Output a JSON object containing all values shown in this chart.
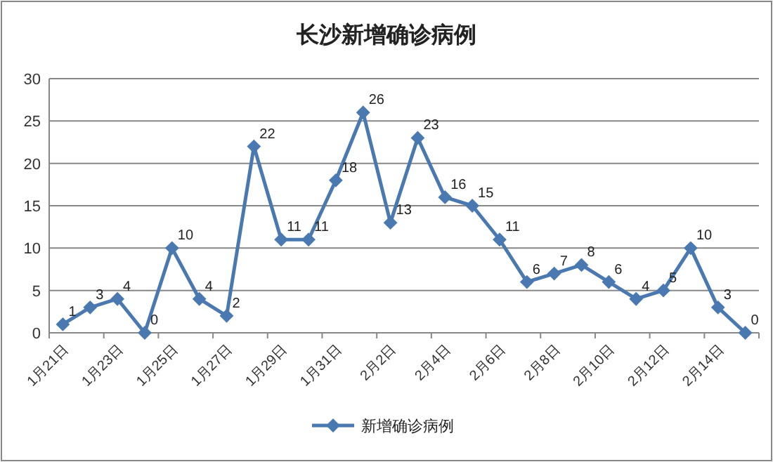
{
  "chart_data": {
    "type": "line",
    "title": "长沙新增确诊病例",
    "categories": [
      "1月21日",
      null,
      "1月23日",
      null,
      "1月25日",
      null,
      "1月27日",
      null,
      "1月29日",
      null,
      "1月31日",
      null,
      "2月2日",
      null,
      "2月4日",
      null,
      "2月6日",
      null,
      "2月8日",
      null,
      "2月10日",
      null,
      "2月12日",
      null,
      "2月14日",
      null
    ],
    "series": [
      {
        "name": "新增确诊病例",
        "color": "#4a78b0",
        "values": [
          1,
          3,
          4,
          0,
          10,
          4,
          2,
          22,
          11,
          11,
          18,
          26,
          13,
          23,
          16,
          15,
          11,
          6,
          7,
          8,
          6,
          4,
          5,
          10,
          3,
          0
        ]
      }
    ],
    "ylim": [
      0,
      30
    ],
    "yticks": [
      0,
      5,
      10,
      15,
      20,
      25,
      30
    ],
    "grid": "y",
    "legend": "bottom",
    "marker": "diamond",
    "data_labels": true
  }
}
